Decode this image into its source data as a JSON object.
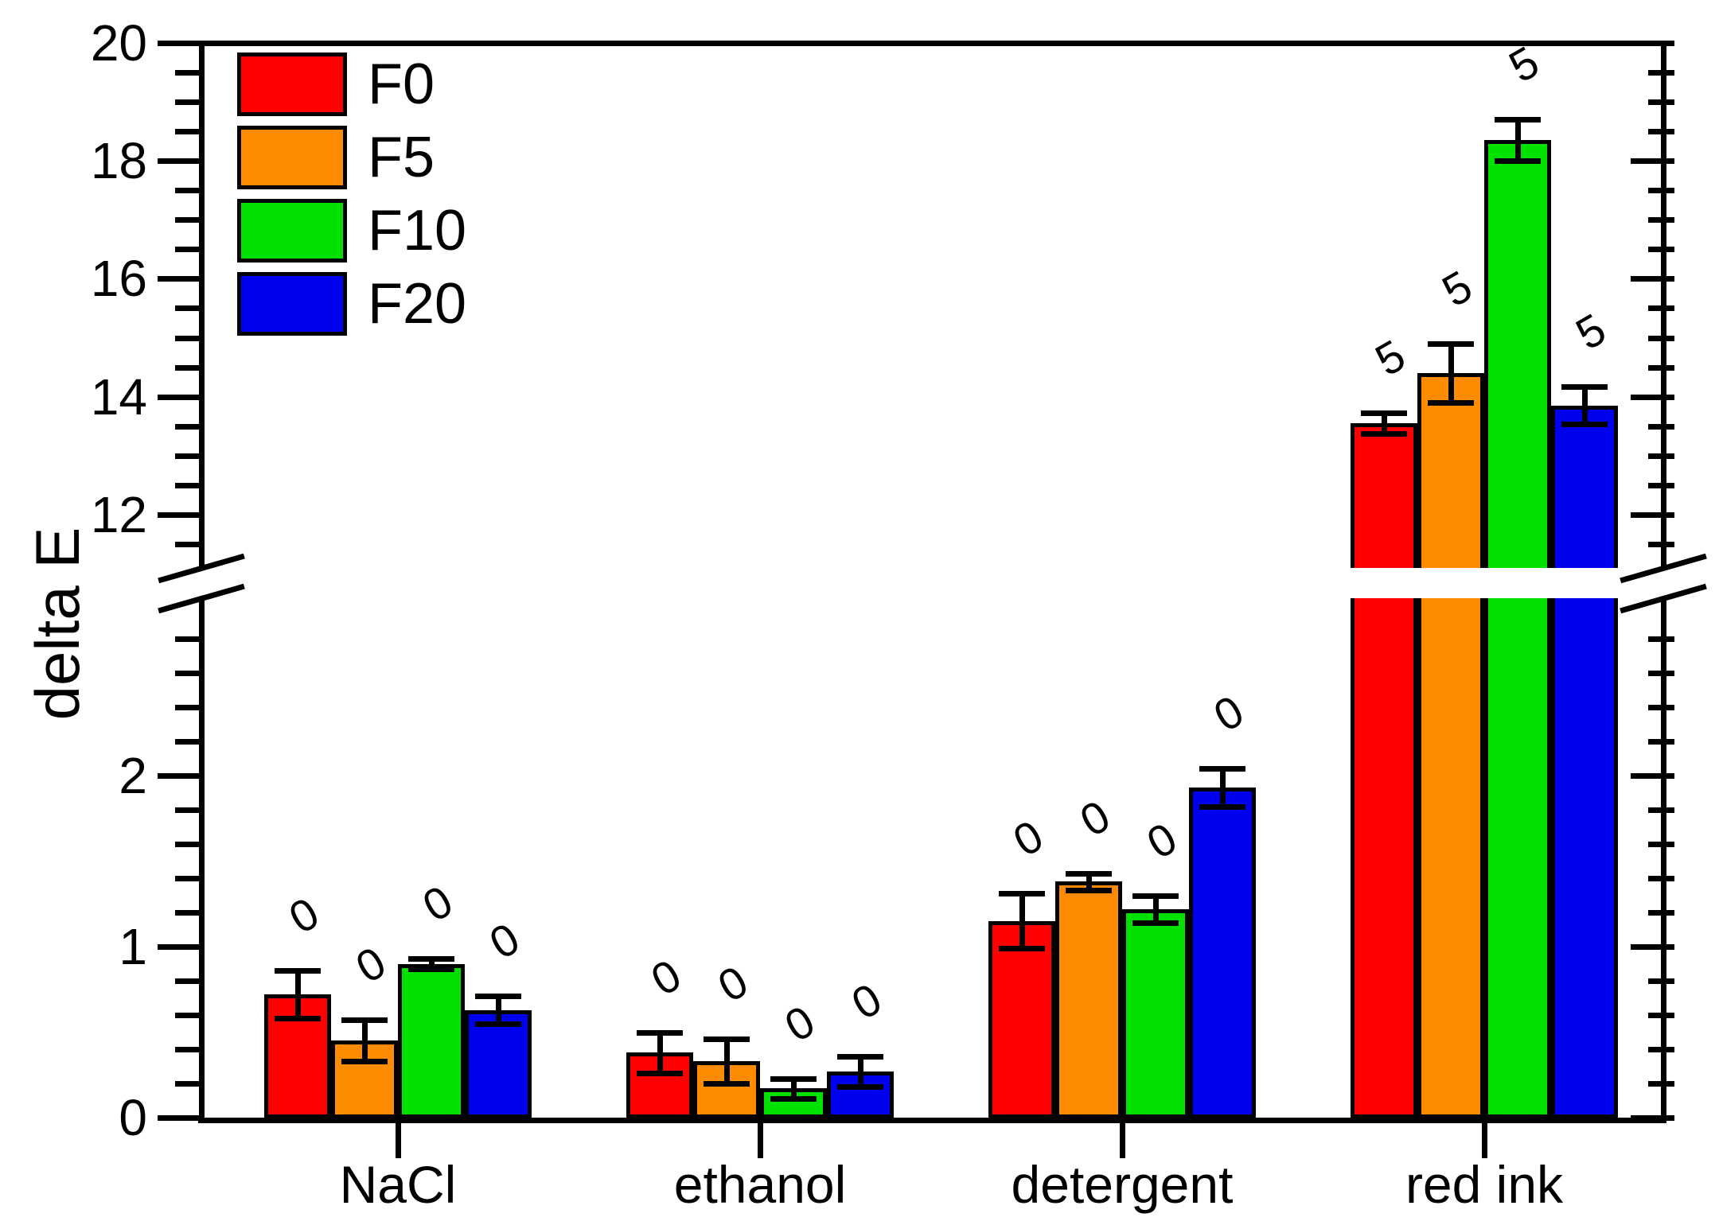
{
  "chart_data": {
    "type": "bar",
    "title": "",
    "xlabel": "",
    "ylabel": "delta E",
    "categories": [
      "NaCl",
      "ethanol",
      "detergent",
      "red ink"
    ],
    "series": [
      {
        "name": "F0",
        "color": "#fe0000",
        "values": [
          0.72,
          0.38,
          1.15,
          13.55
        ],
        "errors": [
          0.14,
          0.12,
          0.16,
          0.18
        ],
        "bar_labels": [
          "0",
          "0",
          "0",
          "5"
        ]
      },
      {
        "name": "F5",
        "color": "#ff8c00",
        "values": [
          0.45,
          0.33,
          1.38,
          14.4
        ],
        "errors": [
          0.12,
          0.13,
          0.05,
          0.5
        ],
        "bar_labels": [
          "0",
          "0",
          "0",
          "5"
        ]
      },
      {
        "name": "F10",
        "color": "#00e100",
        "values": [
          0.9,
          0.17,
          1.22,
          18.35
        ],
        "errors": [
          0.03,
          0.06,
          0.08,
          0.35
        ],
        "bar_labels": [
          "0",
          "0",
          "0",
          "5"
        ]
      },
      {
        "name": "F20",
        "color": "#0000f0",
        "values": [
          0.63,
          0.27,
          1.93,
          13.85
        ],
        "errors": [
          0.08,
          0.09,
          0.11,
          0.32
        ],
        "bar_labels": [
          "0",
          "0",
          "0",
          "5"
        ]
      }
    ],
    "legend_position": "top-left",
    "grid": false,
    "axis_break": {
      "lower_segment_range": [
        0,
        2.98
      ],
      "upper_segment_range": [
        11.2,
        20
      ],
      "break_marks": "double-slash on left and right axes, white gap across bars"
    },
    "y_ticks_lower": [
      0,
      1,
      2
    ],
    "y_ticks_upper": [
      12,
      14,
      16,
      18,
      20
    ],
    "y_minor_step_lower": 0.2,
    "y_minor_step_upper": 0.5,
    "error_bars": "symmetric, cap style",
    "bar_label_rotation_deg": -30
  }
}
